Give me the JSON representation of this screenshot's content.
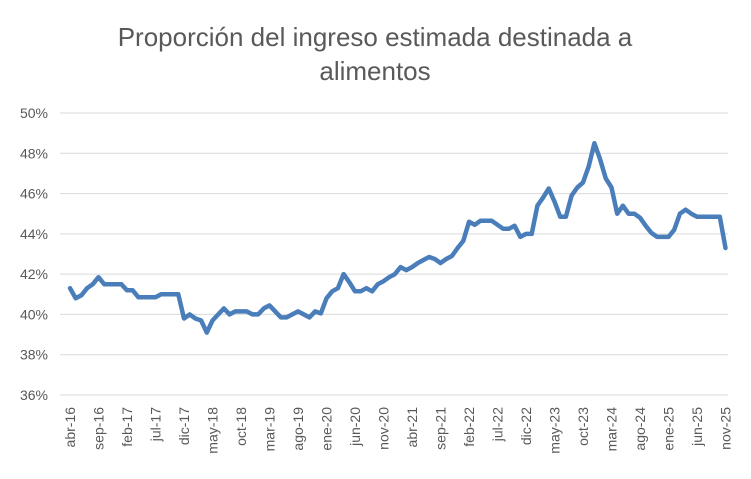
{
  "chart_data": {
    "type": "line",
    "title_lines": [
      "Proporción del ingreso estimada destinada a",
      "alimentos"
    ],
    "xlabel": "",
    "ylabel": "",
    "ylim": [
      36,
      50
    ],
    "y_ticks": [
      36,
      38,
      40,
      42,
      44,
      46,
      48,
      50
    ],
    "y_tick_labels": [
      "36%",
      "38%",
      "40%",
      "42%",
      "44%",
      "46%",
      "48%",
      "50%"
    ],
    "grid": "horizontal",
    "legend": "none",
    "x_tick_labels": [
      "abr-16",
      "sep-16",
      "feb-17",
      "jul-17",
      "dic-17",
      "may-18",
      "oct-18",
      "mar-19",
      "ago-19",
      "ene-20",
      "jun-20",
      "nov-20",
      "abr-21",
      "sep-21",
      "feb-22",
      "jul-22",
      "dic-22",
      "may-23",
      "oct-23",
      "mar-24",
      "ago-24",
      "ene-25",
      "jun-25",
      "nov-25"
    ],
    "series": [
      {
        "color": "#4a7ebb",
        "values": [
          41.3,
          40.8,
          40.95,
          41.3,
          41.5,
          41.85,
          41.5,
          41.5,
          41.5,
          41.5,
          41.2,
          41.2,
          40.85,
          40.85,
          40.85,
          40.85,
          41.0,
          41.0,
          41.0,
          41.0,
          39.8,
          40.0,
          39.8,
          39.7,
          39.1,
          39.7,
          40.0,
          40.3,
          40.0,
          40.15,
          40.15,
          40.15,
          40.0,
          40.0,
          40.3,
          40.45,
          40.15,
          39.85,
          39.85,
          40.0,
          40.15,
          40.0,
          39.85,
          40.15,
          40.05,
          40.8,
          41.15,
          41.3,
          42.0,
          41.6,
          41.15,
          41.15,
          41.3,
          41.15,
          41.5,
          41.65,
          41.85,
          42.0,
          42.35,
          42.2,
          42.35,
          42.55,
          42.7,
          42.85,
          42.75,
          42.55,
          42.75,
          42.9,
          43.3,
          43.65,
          44.6,
          44.45,
          44.65,
          44.65,
          44.65,
          44.45,
          44.25,
          44.25,
          44.4,
          43.85,
          44.0,
          44.0,
          45.4,
          45.8,
          46.25,
          45.6,
          44.85,
          44.85,
          45.9,
          46.3,
          46.55,
          47.35,
          48.5,
          47.7,
          46.75,
          46.3,
          45.0,
          45.4,
          45.0,
          45.0,
          44.8,
          44.4,
          44.05,
          43.85,
          43.85,
          43.85,
          44.2,
          45.0,
          45.2,
          45.0,
          44.85,
          44.85,
          44.85,
          44.85,
          44.85,
          43.3
        ]
      }
    ]
  }
}
